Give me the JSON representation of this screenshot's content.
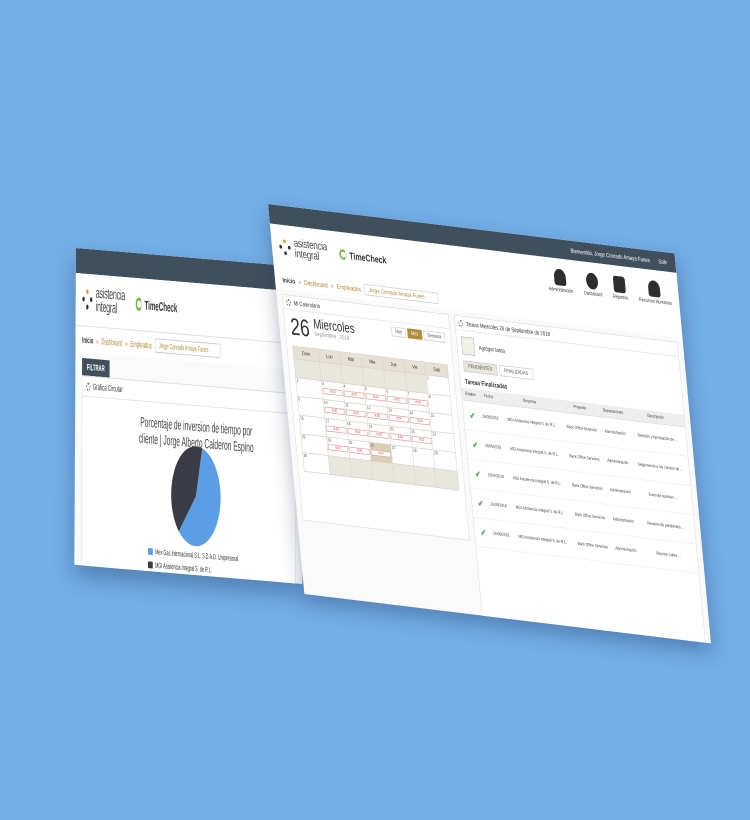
{
  "back": {
    "logo": {
      "line1": "asistencia",
      "line2": "integral"
    },
    "app_name": "TimeCheck",
    "breadcrumb": {
      "home": "Inicio",
      "dashboard": "Dashboard",
      "employees": "Empleados",
      "selected": "Jorge Conrado Amaya Funes"
    },
    "filter_label": "FILTRAR",
    "panel_title": "Gráfica Circular",
    "chart_title_line1": "Porcentaje de inversion de tiempo por",
    "chart_title_line2": "cliente | Jorge Alberto Calderon Espino",
    "chart_data": {
      "type": "pie",
      "series": [
        {
          "name": "Mex Gas Internacional S.L. S.D.A.D. Unipersonal",
          "value": 58,
          "color": "#5b9ee6"
        },
        {
          "name": "MGI Asistencia Integral S. de R.L.",
          "value": 42,
          "color": "#3a3b44"
        }
      ]
    }
  },
  "front": {
    "logo": {
      "line1": "asistencia",
      "line2": "integral"
    },
    "app_name": "TimeCheck",
    "top_user": "Bienvenido, Jorge Conrado Amaya Funes",
    "top_status": "Salir",
    "breadcrumb": {
      "home": "Inicio",
      "dashboard": "Dashboard",
      "employees": "Empleados",
      "selected": "Jorge Conrado Amaya Funes"
    },
    "nav": [
      {
        "label": "Administración",
        "icon": "person-icon"
      },
      {
        "label": "Dashboard",
        "icon": "chart-icon"
      },
      {
        "label": "Reportes",
        "icon": "reports-icon"
      },
      {
        "label": "Recursos Humanos",
        "icon": "tie-icon"
      }
    ],
    "calendar": {
      "panel_title": "Mi Calendario",
      "day_number": "26",
      "day_name": "Miercoles",
      "month_year": "Septiembre , 2018",
      "buttons": [
        "Hoy",
        "Mes",
        "Semana"
      ],
      "active_button": "Mes",
      "weekdays": [
        "Dom",
        "Lun",
        "Mar",
        "Mie",
        "Jue",
        "Vie",
        "Sab"
      ],
      "weeks": [
        [
          "",
          "",
          "",
          "",
          "",
          "",
          "1"
        ],
        [
          "2",
          "3",
          "4",
          "5",
          "6",
          "7",
          "8"
        ],
        [
          "9",
          "10",
          "11",
          "12",
          "13",
          "14",
          "15"
        ],
        [
          "16",
          "17",
          "18",
          "19",
          "20",
          "21",
          "22"
        ],
        [
          "23",
          "24",
          "25",
          "26",
          "27",
          "28",
          "29"
        ],
        [
          "30",
          "",
          "",
          "",
          "",
          "",
          ""
        ]
      ],
      "event_label": "8:00"
    },
    "tasks": {
      "panel_title": "Tareas Miercoles 26 de Septiembre de 2018",
      "add_label": "Agregar tarea",
      "tabs": [
        "PENDIENTES",
        "FINALIZADAS"
      ],
      "section": "Tareas Finalizadas",
      "columns": [
        "",
        "Estatus",
        "Fecha",
        "Empresa",
        "Proyecto",
        "Departamento",
        "Descripción"
      ],
      "rows": [
        [
          "",
          "✔",
          "26/09/2018",
          "MGI Asistencia Integral S. de R.L.",
          "Back Office Servicios",
          "Administración",
          "Revisión y Aprobación de ..."
        ],
        [
          "",
          "✔",
          "26/09/2018",
          "MGI Asistencia Integral S. de R.L.",
          "Back Office Servicios",
          "Administración",
          "Seguimiento a los correos de ..."
        ],
        [
          "",
          "✔",
          "26/09/2018",
          "MGI Asistencia Integral S. de R.L.",
          "Back Office Servicios",
          "Administración",
          "Envio de reportes ..."
        ],
        [
          "",
          "✔",
          "26/09/2018",
          "MGI Asistencia Integral S. de R.L.",
          "Back Office Servicios",
          "Administración",
          "Revisión de pendientes ..."
        ],
        [
          "",
          "✔",
          "26/09/2018",
          "MGI Asistencia Integral S. de R.L.",
          "Back Office Servicios",
          "Administración",
          "Reunion sobre ..."
        ]
      ]
    }
  }
}
